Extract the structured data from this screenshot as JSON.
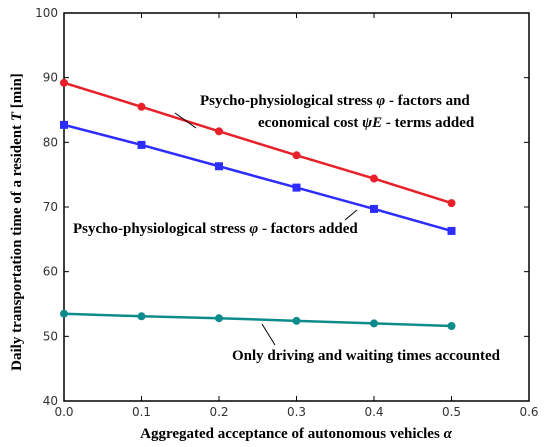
{
  "chart_data": {
    "type": "line",
    "xlabel_text": "Aggregated acceptance of autonomous vehicles",
    "xlabel_symbol": "α",
    "ylabel_text": "Daily transportation time of a resident",
    "ylabel_symbol": "T",
    "ylabel_unit": "[min]",
    "xlim": [
      0.0,
      0.6
    ],
    "ylim": [
      40,
      100
    ],
    "x_ticks": [
      0.0,
      0.1,
      0.2,
      0.3,
      0.4,
      0.5,
      0.6
    ],
    "y_ticks": [
      40,
      50,
      60,
      70,
      80,
      90,
      100
    ],
    "x_tick_labels": [
      "0.0",
      "0.1",
      "0.2",
      "0.3",
      "0.4",
      "0.5",
      "0.6"
    ],
    "y_tick_labels": [
      "40",
      "50",
      "60",
      "70",
      "80",
      "90",
      "100"
    ],
    "grid": false,
    "x": [
      0.0,
      0.1,
      0.2,
      0.3,
      0.4,
      0.5
    ],
    "series": [
      {
        "color": "#e8202a",
        "marker": "circle",
        "values": [
          89.2,
          85.5,
          81.7,
          78.0,
          74.4,
          70.6
        ]
      },
      {
        "color": "#2d2dff",
        "marker": "square",
        "values": [
          82.7,
          79.6,
          76.3,
          73.0,
          69.7,
          66.3
        ]
      },
      {
        "color": "#0e8c8c",
        "marker": "circle",
        "values": [
          53.5,
          53.1,
          52.8,
          52.4,
          52.0,
          51.6
        ]
      }
    ],
    "annotations": {
      "red_line1_pre": "Psycho-physiological stress ",
      "red_line1_sym": "φ",
      "red_line1_post": " - factors and",
      "red_line2_pre": "economical cost ",
      "red_line2_sym": "ψE",
      "red_line2_post": " - terms added",
      "blue_pre": "Psycho-physiological stress ",
      "blue_sym": "φ",
      "blue_post": " - factors added",
      "teal": "Only driving and waiting times accounted"
    }
  }
}
